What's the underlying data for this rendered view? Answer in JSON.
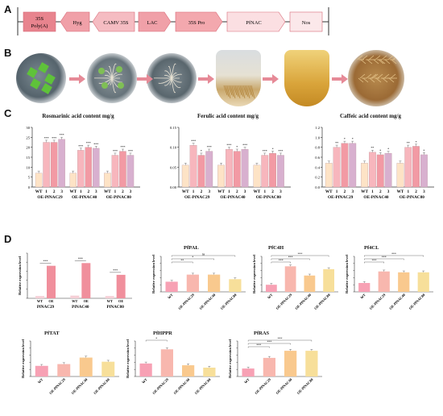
{
  "panels": {
    "a": "A",
    "b": "B",
    "c": "C",
    "d": "D"
  },
  "construct": {
    "elements": [
      {
        "label": "35S",
        "label2": "Poly(A)",
        "color": "#e8848e",
        "shape": "box"
      },
      {
        "label": "Hyg",
        "color": "#f0a0a8",
        "shape": "arrow-left"
      },
      {
        "label": "CAMV 35S",
        "color": "#f5bcc2",
        "shape": "arrow-left"
      },
      {
        "label": "LAC",
        "color": "#f0a0a8",
        "shape": "arrow-right"
      },
      {
        "label": "35S Pro",
        "color": "#f3a8ae",
        "shape": "arrow-right"
      },
      {
        "label": "PfNAC",
        "color": "#fbdfe2",
        "shape": "arrow-right"
      },
      {
        "label": "Nos",
        "color": "#fbe8ea",
        "shape": "box"
      }
    ]
  },
  "pipeline_photos": [
    {
      "icon": "leaf-explants-petri-dish"
    },
    {
      "icon": "callus-petri-dish"
    },
    {
      "icon": "hairy-roots-petri-dish"
    },
    {
      "icon": "roots-in-flask"
    },
    {
      "icon": "liquid-culture-flask"
    },
    {
      "icon": "harvested-roots-dish"
    }
  ],
  "colors": {
    "wt": "#fde3c6",
    "l1": "#f7b6bd",
    "l2": "#f29aa4",
    "l3": "#d8b0cf",
    "d_wt": "#f7a1b4",
    "d_l29": "#f8b7ae",
    "d_l40": "#f9c98e",
    "d_l80": "#f7df9a",
    "d_pair_wt": "#f5cfd6",
    "d_pair_oe": "#f08f9c"
  },
  "chart_data": [
    {
      "type": "bar",
      "title": "Rosmarinic acid content mg/g",
      "ylim": [
        0,
        30
      ],
      "yticks": [
        "0",
        "5",
        "10",
        "15",
        "20",
        "25",
        "30"
      ],
      "groups": [
        "OE-PfNAC29",
        "OE-PfNAC40",
        "OE-PfNAC80"
      ],
      "categories": [
        "WT",
        "1",
        "2",
        "3"
      ],
      "series": [
        {
          "group": "OE-PfNAC29",
          "values": [
            7,
            22.5,
            22.5,
            24
          ]
        },
        {
          "group": "OE-PfNAC40",
          "values": [
            7,
            18.5,
            20,
            19.5
          ]
        },
        {
          "group": "OE-PfNAC80",
          "values": [
            7,
            16,
            18,
            16
          ]
        }
      ],
      "sig": [
        "",
        "***",
        "***",
        "***"
      ]
    },
    {
      "type": "bar",
      "title": "Ferulic acid content mg/g",
      "ylim": [
        0,
        0.15
      ],
      "yticks": [
        "0.00",
        "0.05",
        "0.10",
        "0.15"
      ],
      "groups": [
        "OE-PfNAC29",
        "OE-PfNAC40",
        "OE-PfNAC80"
      ],
      "categories": [
        "WT",
        "1",
        "2",
        "3"
      ],
      "series": [
        {
          "group": "OE-PfNAC29",
          "values": [
            0.055,
            0.105,
            0.08,
            0.09
          ]
        },
        {
          "group": "OE-PfNAC40",
          "values": [
            0.055,
            0.095,
            0.09,
            0.095
          ]
        },
        {
          "group": "OE-PfNAC80",
          "values": [
            0.055,
            0.08,
            0.085,
            0.08
          ]
        }
      ],
      "sig": [
        "",
        "***",
        "*",
        "***"
      ]
    },
    {
      "type": "bar",
      "title": "Caffeic acid content mg/g",
      "ylim": [
        0,
        1.2
      ],
      "yticks": [
        "0.0",
        "0.2",
        "0.4",
        "0.6",
        "0.8",
        "1.0",
        "1.2"
      ],
      "groups": [
        "OE-PfNAC29",
        "OE-PfNAC40",
        "OE-PfNAC80"
      ],
      "categories": [
        "WT",
        "1",
        "2",
        "3"
      ],
      "series": [
        {
          "group": "OE-PfNAC29",
          "values": [
            0.48,
            0.8,
            0.88,
            0.88
          ]
        },
        {
          "group": "OE-PfNAC40",
          "values": [
            0.48,
            0.7,
            0.65,
            0.68
          ]
        },
        {
          "group": "OE-PfNAC80",
          "values": [
            0.48,
            0.8,
            0.82,
            0.65
          ]
        }
      ],
      "sig": [
        "",
        "**",
        "*",
        "*"
      ]
    },
    {
      "type": "bar",
      "title": "",
      "ylabel": "Relative expression level",
      "ylim": [
        0,
        1
      ],
      "categories": [
        "PfNAC29",
        "PfNAC40",
        "PfNAC80"
      ],
      "series": [
        {
          "name": "WT",
          "values": [
            0.05,
            0.06,
            0.05
          ]
        },
        {
          "name": "OE",
          "values": [
            0.72,
            0.78,
            0.52
          ]
        }
      ],
      "sig": [
        "***",
        "***",
        "***"
      ]
    },
    {
      "type": "bar",
      "title": "PfPAL",
      "ylabel": "Relative expression level",
      "ylim": [
        0,
        3.5
      ],
      "categories": [
        "WT",
        "OE-PfNAC29",
        "OE-PfNAC40",
        "OE-PfNAC80"
      ],
      "values": [
        1.0,
        1.7,
        1.7,
        1.25
      ]
    },
    {
      "type": "bar",
      "title": "PfC4H",
      "ylabel": "Relative expression level",
      "ylim": [
        0,
        5
      ],
      "categories": [
        "WT",
        "OE-PfNAC29",
        "OE-PfNAC40",
        "OE-PfNAC80"
      ],
      "values": [
        1.0,
        3.6,
        2.3,
        3.2
      ]
    },
    {
      "type": "bar",
      "title": "Pf4CL",
      "ylabel": "Relative expression level",
      "ylim": [
        0,
        4
      ],
      "categories": [
        "WT",
        "OE-PfNAC29",
        "OE-PfNAC40",
        "OE-PfNAC80"
      ],
      "values": [
        1.0,
        2.3,
        2.2,
        2.2
      ]
    },
    {
      "type": "bar",
      "title": "PfTAT",
      "ylabel": "Relative expression level",
      "ylim": [
        0,
        3
      ],
      "categories": [
        "WT",
        "OE-PfNAC29",
        "OE-PfNAC40",
        "OE-PfNAC80"
      ],
      "values": [
        0.9,
        1.05,
        1.6,
        1.25
      ]
    },
    {
      "type": "bar",
      "title": "PfHPPR",
      "ylabel": "Relative expression level",
      "ylim": [
        0,
        3
      ],
      "categories": [
        "WT",
        "OE-PfNAC29",
        "OE-PfNAC40",
        "OE-PfNAC80"
      ],
      "values": [
        1.1,
        2.3,
        0.95,
        0.75
      ]
    },
    {
      "type": "bar",
      "title": "PfRAS",
      "ylabel": "Relative expression level",
      "ylim": [
        0,
        4
      ],
      "categories": [
        "WT",
        "OE-PfNAC29",
        "OE-PfNAC40",
        "OE-PfNAC80"
      ],
      "values": [
        0.9,
        2.1,
        2.9,
        2.9
      ]
    }
  ]
}
